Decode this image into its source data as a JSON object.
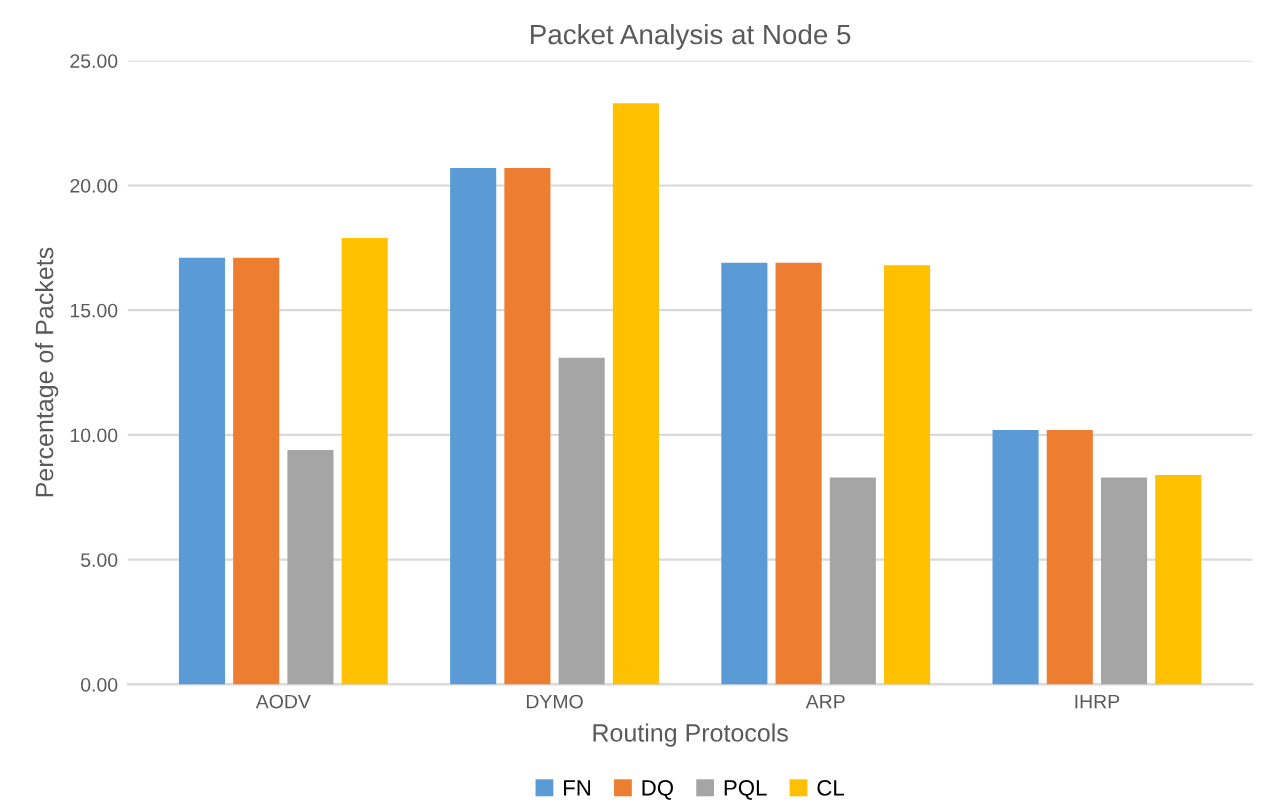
{
  "chart_data": {
    "type": "bar",
    "title": "Packet Analysis at Node 5",
    "xlabel": "Routing Protocols",
    "ylabel": "Percentage of Packets",
    "categories": [
      "AODV",
      "DYMO",
      "ARP",
      "IHRP"
    ],
    "series": [
      {
        "name": "FN",
        "color": "#5b9bd5",
        "values": [
          17.1,
          20.7,
          16.9,
          10.2
        ]
      },
      {
        "name": "DQ",
        "color": "#ed7d31",
        "values": [
          17.1,
          20.7,
          16.9,
          10.2
        ]
      },
      {
        "name": "PQL",
        "color": "#a5a5a5",
        "values": [
          9.4,
          13.1,
          8.3,
          8.3
        ]
      },
      {
        "name": "CL",
        "color": "#ffc000",
        "values": [
          17.9,
          23.3,
          16.8,
          8.4
        ]
      }
    ],
    "ylim": [
      0,
      25
    ],
    "yticks": [
      {
        "value": 0,
        "label": "0.00"
      },
      {
        "value": 5,
        "label": "5.00"
      },
      {
        "value": 10,
        "label": "10.00"
      },
      {
        "value": 15,
        "label": "15.00"
      },
      {
        "value": 20,
        "label": "20.00"
      },
      {
        "value": 25,
        "label": "25.00"
      }
    ],
    "grid": "y",
    "legend": "bottom"
  }
}
